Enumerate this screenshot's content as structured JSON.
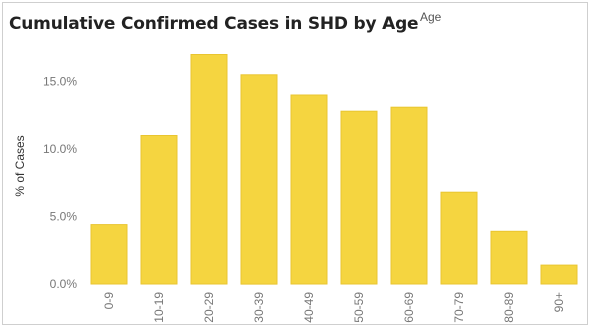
{
  "chart_data": {
    "type": "bar",
    "title": "Cumulative Confirmed Cases in SHD by Age",
    "xlabel": "Age",
    "ylabel": "% of Cases",
    "categories": [
      "0-9",
      "10-19",
      "20-29",
      "30-39",
      "40-49",
      "50-59",
      "60-69",
      "70-79",
      "80-89",
      "90+"
    ],
    "values": [
      4.4,
      11.0,
      17.0,
      15.5,
      14.0,
      12.8,
      13.1,
      6.8,
      3.9,
      1.4
    ],
    "ylim": [
      0,
      18
    ],
    "yticks": [
      {
        "value": 0,
        "label": "0.0%"
      },
      {
        "value": 5,
        "label": "5.0%"
      },
      {
        "value": 10,
        "label": "10.0%"
      },
      {
        "value": 15,
        "label": "15.0%"
      }
    ],
    "grid": false,
    "bar_color": "#F5D540",
    "bar_edge_color": "#E9C530"
  }
}
